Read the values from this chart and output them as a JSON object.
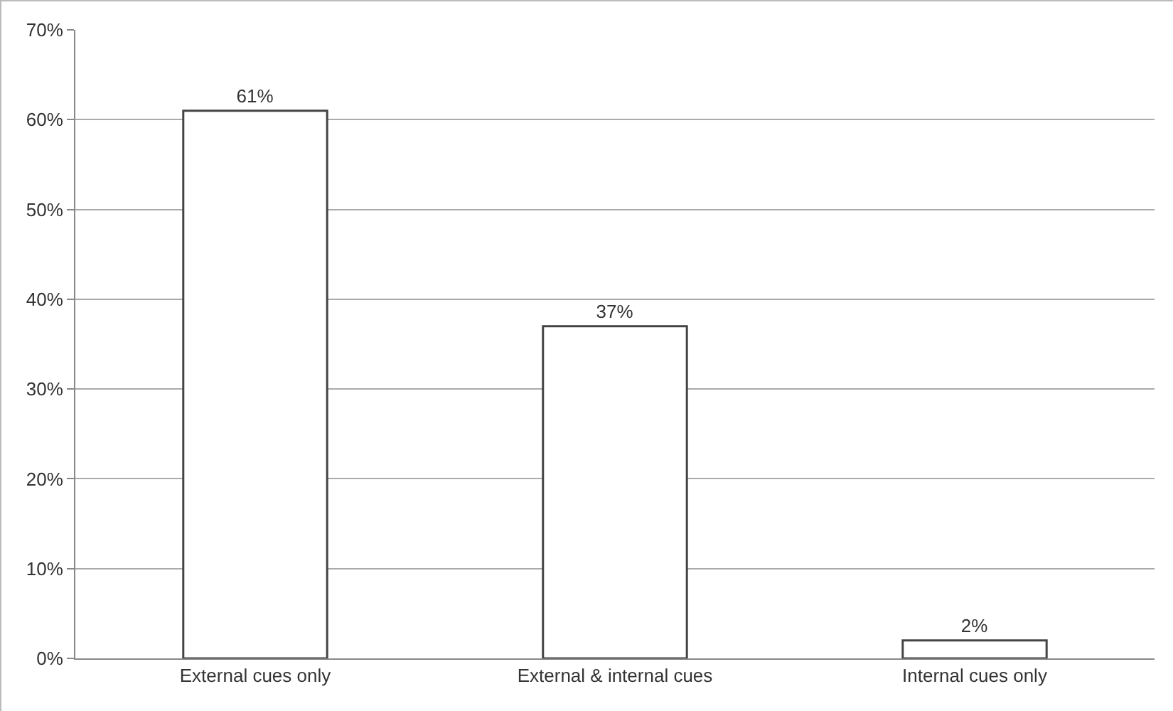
{
  "chart_data": {
    "type": "bar",
    "categories": [
      "External cues only",
      "External & internal cues",
      "Internal cues only"
    ],
    "values": [
      61,
      37,
      2
    ],
    "color": "#ffffff",
    "value_labels": [
      "61%",
      "37%",
      "2%"
    ],
    "ylim": [
      0,
      70
    ],
    "yticks": [
      {
        "value": 0,
        "label": "0%"
      },
      {
        "value": 10,
        "label": "10%"
      },
      {
        "value": 20,
        "label": "20%"
      },
      {
        "value": 30,
        "label": "30%"
      },
      {
        "value": 40,
        "label": "40%"
      },
      {
        "value": 50,
        "label": "50%"
      },
      {
        "value": 60,
        "label": "60%"
      },
      {
        "value": 70,
        "label": "70%"
      }
    ],
    "grid": "y"
  }
}
